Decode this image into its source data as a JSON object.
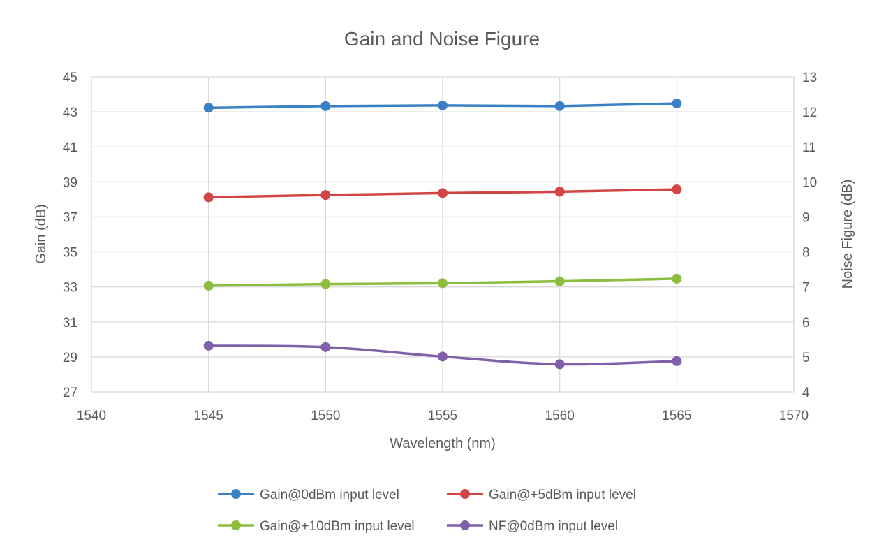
{
  "chart_data": {
    "type": "line",
    "title": "Gain and Noise Figure",
    "xlabel": "Wavelength (nm)",
    "ylabel": "Gain (dB)",
    "y2label": "Noise Figure (dB)",
    "xlim": [
      1540,
      1570
    ],
    "xticks": [
      1540,
      1545,
      1550,
      1555,
      1560,
      1565,
      1570
    ],
    "ylim": [
      27,
      45
    ],
    "yticks": [
      27,
      29,
      31,
      33,
      35,
      37,
      39,
      41,
      43,
      45
    ],
    "y2lim": [
      4,
      13
    ],
    "y2ticks": [
      4,
      5,
      6,
      7,
      8,
      9,
      10,
      11,
      12,
      13
    ],
    "grid": true,
    "legend_position": "bottom",
    "x": [
      1545,
      1550,
      1555,
      1560,
      1565
    ],
    "series": [
      {
        "name": "Gain@0dBm input level",
        "axis": "left",
        "color": "#3a80c4",
        "smooth": false,
        "values": [
          43.23,
          43.33,
          43.37,
          43.33,
          43.48
        ]
      },
      {
        "name": "Gain@+5dBm input level",
        "axis": "left",
        "color": "#d24545",
        "smooth": false,
        "values": [
          38.12,
          38.25,
          38.36,
          38.44,
          38.57
        ]
      },
      {
        "name": "Gain@+10dBm input level",
        "axis": "left",
        "color": "#8cbd3f",
        "smooth": false,
        "values": [
          33.07,
          33.16,
          33.21,
          33.32,
          33.47
        ]
      },
      {
        "name": "NF@0dBm input level",
        "axis": "right",
        "color": "#8060a8",
        "smooth": true,
        "values": [
          5.32,
          5.28,
          5.01,
          4.79,
          4.88
        ]
      }
    ]
  }
}
